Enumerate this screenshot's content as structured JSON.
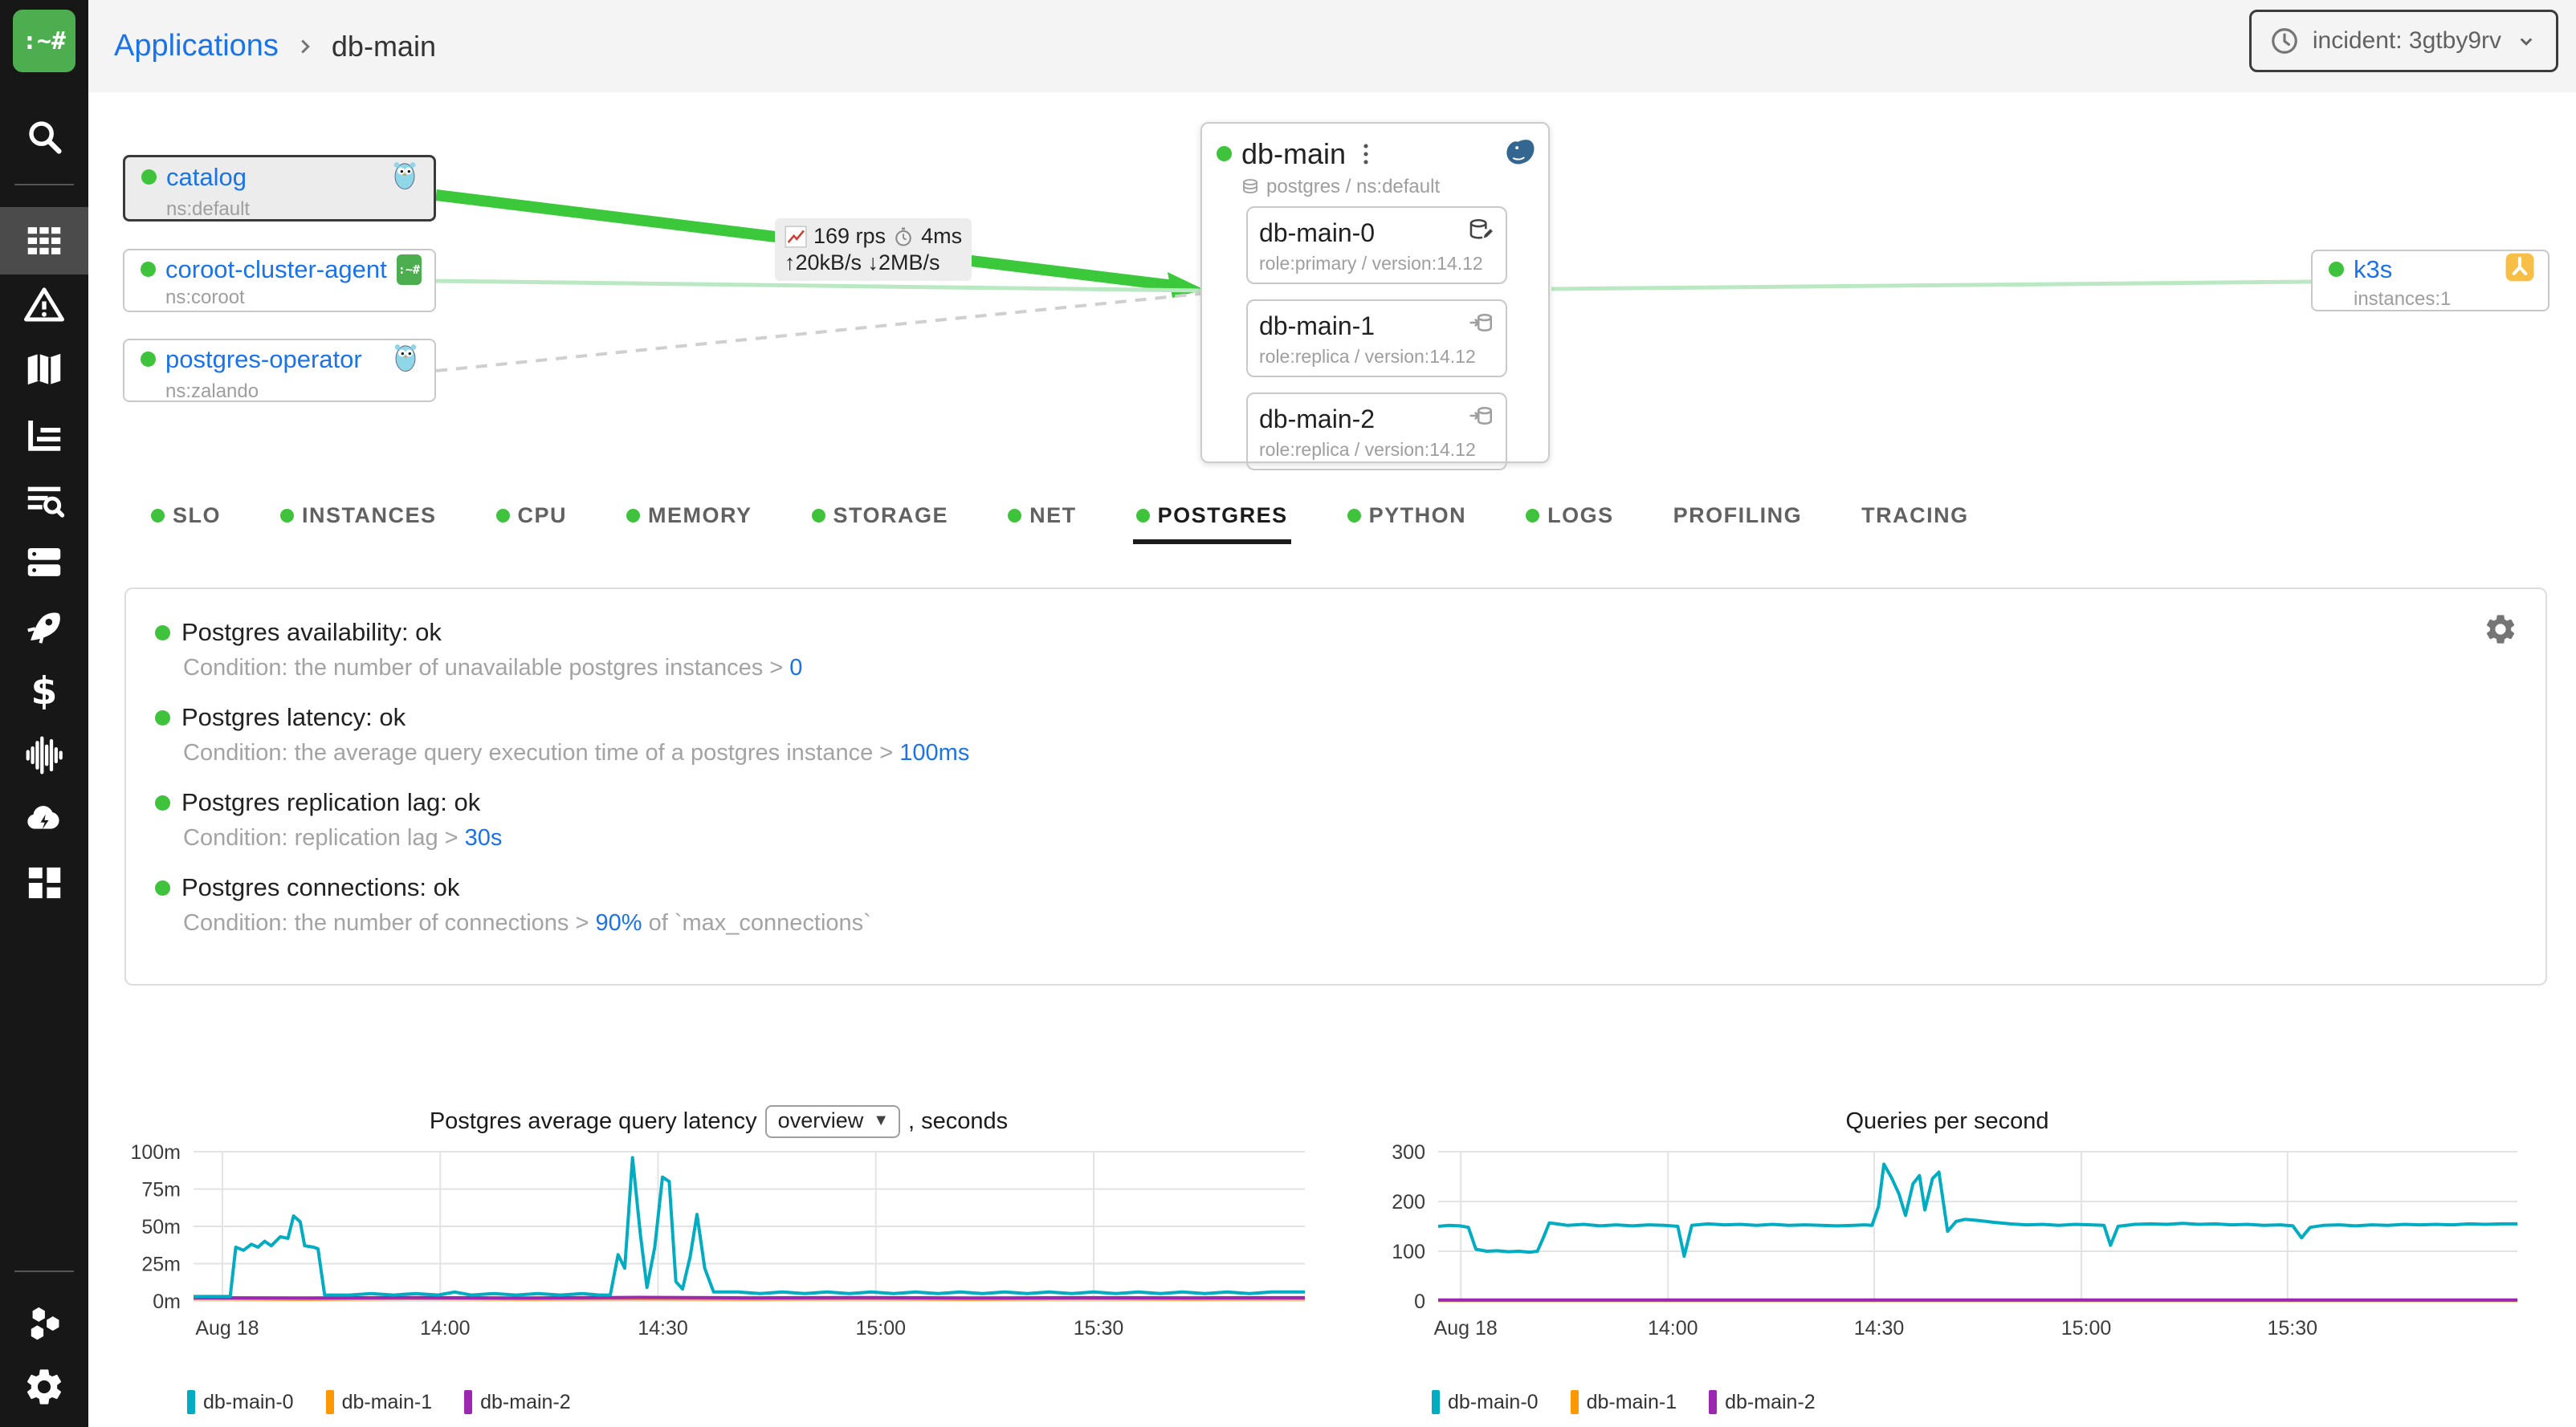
{
  "header": {
    "breadcrumb": {
      "root": "Applications",
      "current": "db-main"
    },
    "incident": {
      "label": "incident: 3gtby9rv"
    }
  },
  "sidebar": {
    "icons": [
      "search",
      "applications-grid",
      "incidents-warning",
      "service-map",
      "dashboards-chart",
      "logs-search",
      "nodes-servers",
      "deployments-rocket",
      "costs-dollar",
      "traces-waveform",
      "cloud",
      "widgets",
      "integrations-hexagons",
      "settings-gear"
    ]
  },
  "map": {
    "left_nodes": [
      {
        "name": "catalog",
        "sub": "ns:default",
        "icon": "gopher"
      },
      {
        "name": "coroot-cluster-agent",
        "sub": "ns:coroot",
        "icon": "coroot"
      },
      {
        "name": "postgres-operator",
        "sub": "ns:zalando",
        "icon": "gopher"
      }
    ],
    "app": {
      "name": "db-main",
      "subtitle": "postgres / ns:default",
      "instances": [
        {
          "name": "db-main-0",
          "meta": "role:primary / version:14.12",
          "icon": "db-primary"
        },
        {
          "name": "db-main-1",
          "meta": "role:replica / version:14.12",
          "icon": "db-replica"
        },
        {
          "name": "db-main-2",
          "meta": "role:replica / version:14.12",
          "icon": "db-replica"
        }
      ]
    },
    "right_node": {
      "name": "k3s",
      "sub": "instances:1",
      "icon": "k3s"
    },
    "edge_label": {
      "rps": "169 rps",
      "latency": "4ms",
      "throughput": "↑20kB/s ↓2MB/s"
    },
    "colors": {
      "edge_strong": "#3bc93b",
      "edge_light": "#b9e8c2",
      "edge_dashed": "#cfcfcf",
      "status_ok": "#3fc23c",
      "link": "#1a73e8"
    }
  },
  "tabs": [
    {
      "label": "SLO",
      "dot": true
    },
    {
      "label": "INSTANCES",
      "dot": true
    },
    {
      "label": "CPU",
      "dot": true
    },
    {
      "label": "MEMORY",
      "dot": true
    },
    {
      "label": "STORAGE",
      "dot": true
    },
    {
      "label": "NET",
      "dot": true
    },
    {
      "label": "POSTGRES",
      "dot": true,
      "active": true
    },
    {
      "label": "PYTHON",
      "dot": true
    },
    {
      "label": "LOGS",
      "dot": true
    },
    {
      "label": "PROFILING",
      "dot": false
    },
    {
      "label": "TRACING",
      "dot": false
    }
  ],
  "checks": [
    {
      "title": "Postgres availability: ok",
      "cond_before": "Condition: the number of unavailable postgres instances > ",
      "value": "0",
      "cond_after": ""
    },
    {
      "title": "Postgres latency: ok",
      "cond_before": "Condition: the average query execution time of a postgres instance > ",
      "value": "100ms",
      "cond_after": ""
    },
    {
      "title": "Postgres replication lag: ok",
      "cond_before": "Condition: replication lag > ",
      "value": "30s",
      "cond_after": ""
    },
    {
      "title": "Postgres connections: ok",
      "cond_before": "Condition: the number of connections > ",
      "value": "90%",
      "cond_after": " of `max_connections`"
    }
  ],
  "chart_data": [
    {
      "type": "line",
      "title_prefix": "Postgres average query latency",
      "selector": "overview",
      "title_suffix": ", seconds",
      "ylim": [
        0,
        100
      ],
      "yticks": [
        {
          "v": 0,
          "label": "0m"
        },
        {
          "v": 25,
          "label": "25m"
        },
        {
          "v": 50,
          "label": "50m"
        },
        {
          "v": 75,
          "label": "75m"
        },
        {
          "v": 100,
          "label": "100m"
        }
      ],
      "xticks": [
        {
          "t": 0.026,
          "label": "Aug 18"
        },
        {
          "t": 0.222,
          "label": "14:00"
        },
        {
          "t": 0.418,
          "label": "14:30"
        },
        {
          "t": 0.614,
          "label": "15:00"
        },
        {
          "t": 0.81,
          "label": "15:30"
        }
      ],
      "grid": true,
      "legend_position": "bottom",
      "draw_order": [
        1,
        2,
        0
      ],
      "series": [
        {
          "name": "db-main-0",
          "color": "#00acc1",
          "unit": "ms",
          "points": [
            [
              0,
              3
            ],
            [
              0.02,
              3
            ],
            [
              0.033,
              3
            ],
            [
              0.038,
              36
            ],
            [
              0.045,
              34
            ],
            [
              0.052,
              38
            ],
            [
              0.058,
              36
            ],
            [
              0.064,
              40
            ],
            [
              0.07,
              37
            ],
            [
              0.078,
              43
            ],
            [
              0.085,
              42
            ],
            [
              0.09,
              57
            ],
            [
              0.096,
              53
            ],
            [
              0.1,
              37
            ],
            [
              0.108,
              36
            ],
            [
              0.112,
              35
            ],
            [
              0.118,
              4
            ],
            [
              0.14,
              4
            ],
            [
              0.16,
              5
            ],
            [
              0.18,
              4
            ],
            [
              0.2,
              5
            ],
            [
              0.22,
              4
            ],
            [
              0.235,
              6
            ],
            [
              0.25,
              4
            ],
            [
              0.27,
              5
            ],
            [
              0.29,
              4
            ],
            [
              0.31,
              5
            ],
            [
              0.33,
              4
            ],
            [
              0.35,
              5
            ],
            [
              0.365,
              4
            ],
            [
              0.375,
              4
            ],
            [
              0.382,
              31
            ],
            [
              0.388,
              22
            ],
            [
              0.395,
              96
            ],
            [
              0.402,
              45
            ],
            [
              0.408,
              9
            ],
            [
              0.415,
              36
            ],
            [
              0.422,
              83
            ],
            [
              0.428,
              80
            ],
            [
              0.434,
              13
            ],
            [
              0.44,
              8
            ],
            [
              0.447,
              30
            ],
            [
              0.453,
              58
            ],
            [
              0.46,
              22
            ],
            [
              0.468,
              6
            ],
            [
              0.49,
              6
            ],
            [
              0.51,
              5
            ],
            [
              0.53,
              6
            ],
            [
              0.55,
              5
            ],
            [
              0.57,
              6
            ],
            [
              0.59,
              5
            ],
            [
              0.61,
              6
            ],
            [
              0.63,
              5
            ],
            [
              0.65,
              6
            ],
            [
              0.67,
              5
            ],
            [
              0.69,
              6
            ],
            [
              0.71,
              5
            ],
            [
              0.73,
              6
            ],
            [
              0.75,
              5
            ],
            [
              0.77,
              6
            ],
            [
              0.79,
              5
            ],
            [
              0.81,
              6
            ],
            [
              0.83,
              5
            ],
            [
              0.85,
              6
            ],
            [
              0.87,
              5
            ],
            [
              0.89,
              6
            ],
            [
              0.91,
              5
            ],
            [
              0.93,
              6
            ],
            [
              0.95,
              5
            ],
            [
              0.97,
              6
            ],
            [
              1,
              6
            ]
          ]
        },
        {
          "name": "db-main-1",
          "color": "#ff9800",
          "unit": "ms",
          "points": [
            [
              0,
              1.5
            ],
            [
              0.1,
              1.2
            ],
            [
              0.2,
              1.6
            ],
            [
              0.3,
              1.3
            ],
            [
              0.4,
              1.5
            ],
            [
              0.5,
              1.3
            ],
            [
              0.6,
              1.5
            ],
            [
              0.7,
              1.2
            ],
            [
              0.8,
              1.5
            ],
            [
              0.9,
              1.3
            ],
            [
              1,
              1.4
            ]
          ]
        },
        {
          "name": "db-main-2",
          "color": "#9c27b0",
          "unit": "ms",
          "points": [
            [
              0,
              2.2
            ],
            [
              0.1,
              2
            ],
            [
              0.2,
              2.3
            ],
            [
              0.3,
              2
            ],
            [
              0.4,
              2.4
            ],
            [
              0.5,
              2.1
            ],
            [
              0.6,
              2.3
            ],
            [
              0.7,
              2
            ],
            [
              0.8,
              2.2
            ],
            [
              0.9,
              2.1
            ],
            [
              1,
              2.2
            ]
          ]
        }
      ]
    },
    {
      "type": "line",
      "title": "Queries per second",
      "ylim": [
        0,
        300
      ],
      "yticks": [
        {
          "v": 0,
          "label": "0"
        },
        {
          "v": 100,
          "label": "100"
        },
        {
          "v": 200,
          "label": "200"
        },
        {
          "v": 300,
          "label": "300"
        }
      ],
      "xticks": [
        {
          "t": 0.021,
          "label": "Aug 18"
        },
        {
          "t": 0.213,
          "label": "14:00"
        },
        {
          "t": 0.404,
          "label": "14:30"
        },
        {
          "t": 0.596,
          "label": "15:00"
        },
        {
          "t": 0.787,
          "label": "15:30"
        }
      ],
      "grid": true,
      "legend_position": "bottom",
      "draw_order": [
        1,
        2,
        0
      ],
      "series": [
        {
          "name": "db-main-0",
          "color": "#00acc1",
          "unit": "qps",
          "points": [
            [
              0,
              150
            ],
            [
              0.01,
              152
            ],
            [
              0.02,
              151
            ],
            [
              0.028,
              148
            ],
            [
              0.035,
              104
            ],
            [
              0.045,
              100
            ],
            [
              0.055,
              101
            ],
            [
              0.065,
              99
            ],
            [
              0.075,
              100
            ],
            [
              0.085,
              98
            ],
            [
              0.092,
              100
            ],
            [
              0.098,
              130
            ],
            [
              0.103,
              157
            ],
            [
              0.11,
              155
            ],
            [
              0.12,
              152
            ],
            [
              0.135,
              154
            ],
            [
              0.15,
              151
            ],
            [
              0.165,
              153
            ],
            [
              0.18,
              151
            ],
            [
              0.195,
              153
            ],
            [
              0.21,
              152
            ],
            [
              0.222,
              150
            ],
            [
              0.228,
              90
            ],
            [
              0.235,
              152
            ],
            [
              0.25,
              155
            ],
            [
              0.265,
              153
            ],
            [
              0.28,
              154
            ],
            [
              0.295,
              152
            ],
            [
              0.31,
              154
            ],
            [
              0.325,
              152
            ],
            [
              0.34,
              153
            ],
            [
              0.355,
              152
            ],
            [
              0.37,
              151
            ],
            [
              0.385,
              152
            ],
            [
              0.395,
              153
            ],
            [
              0.402,
              152
            ],
            [
              0.408,
              190
            ],
            [
              0.413,
              275
            ],
            [
              0.42,
              248
            ],
            [
              0.427,
              215
            ],
            [
              0.433,
              172
            ],
            [
              0.44,
              236
            ],
            [
              0.446,
              252
            ],
            [
              0.451,
              183
            ],
            [
              0.458,
              246
            ],
            [
              0.464,
              259
            ],
            [
              0.472,
              140
            ],
            [
              0.48,
              160
            ],
            [
              0.488,
              164
            ],
            [
              0.5,
              162
            ],
            [
              0.515,
              158
            ],
            [
              0.53,
              155
            ],
            [
              0.545,
              153
            ],
            [
              0.56,
              154
            ],
            [
              0.575,
              152
            ],
            [
              0.59,
              154
            ],
            [
              0.605,
              153
            ],
            [
              0.617,
              152
            ],
            [
              0.623,
              112
            ],
            [
              0.63,
              150
            ],
            [
              0.645,
              154
            ],
            [
              0.66,
              155
            ],
            [
              0.675,
              154
            ],
            [
              0.69,
              156
            ],
            [
              0.705,
              154
            ],
            [
              0.72,
              155
            ],
            [
              0.735,
              153
            ],
            [
              0.75,
              154
            ],
            [
              0.765,
              152
            ],
            [
              0.78,
              153
            ],
            [
              0.792,
              151
            ],
            [
              0.8,
              127
            ],
            [
              0.808,
              148
            ],
            [
              0.82,
              152
            ],
            [
              0.835,
              153
            ],
            [
              0.85,
              151
            ],
            [
              0.865,
              153
            ],
            [
              0.88,
              152
            ],
            [
              0.895,
              154
            ],
            [
              0.91,
              153
            ],
            [
              0.925,
              154
            ],
            [
              0.94,
              153
            ],
            [
              0.955,
              155
            ],
            [
              0.97,
              154
            ],
            [
              0.985,
              155
            ],
            [
              1,
              155
            ]
          ]
        },
        {
          "name": "db-main-1",
          "color": "#ff9800",
          "unit": "qps",
          "points": [
            [
              0,
              1
            ],
            [
              1,
              1
            ]
          ]
        },
        {
          "name": "db-main-2",
          "color": "#9c27b0",
          "unit": "qps",
          "points": [
            [
              0,
              2
            ],
            [
              1,
              2
            ]
          ]
        }
      ]
    }
  ]
}
